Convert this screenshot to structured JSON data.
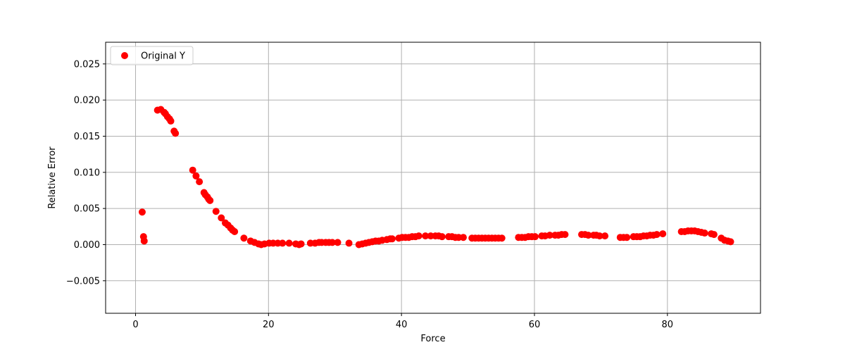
{
  "chart_data": {
    "type": "scatter",
    "title": "",
    "xlabel": "Force",
    "ylabel": "Relative Error",
    "xlim": [
      -4.5,
      94
    ],
    "ylim": [
      -0.0095,
      0.028
    ],
    "xticks": [
      0,
      20,
      40,
      60,
      80
    ],
    "yticks": [
      -0.005,
      0.0,
      0.005,
      0.01,
      0.015,
      0.02,
      0.025
    ],
    "ytick_labels": [
      "−0.005",
      "0.000",
      "0.005",
      "0.010",
      "0.015",
      "0.020",
      "0.025"
    ],
    "grid": true,
    "legend": {
      "position": "top-left"
    },
    "series": [
      {
        "name": "Original Y",
        "color": "#ff0000",
        "marker": "circle",
        "points": [
          [
            1.0,
            0.0045
          ],
          [
            1.2,
            0.0011
          ],
          [
            1.3,
            0.0005
          ],
          [
            3.3,
            0.0186
          ],
          [
            3.8,
            0.0187
          ],
          [
            4.3,
            0.0183
          ],
          [
            4.5,
            0.0181
          ],
          [
            4.8,
            0.0177
          ],
          [
            5.1,
            0.0174
          ],
          [
            5.3,
            0.0171
          ],
          [
            5.8,
            0.0157
          ],
          [
            6.0,
            0.0154
          ],
          [
            8.6,
            0.0103
          ],
          [
            9.1,
            0.0095
          ],
          [
            9.6,
            0.0087
          ],
          [
            10.3,
            0.0072
          ],
          [
            10.5,
            0.0069
          ],
          [
            10.8,
            0.0066
          ],
          [
            11.0,
            0.0063
          ],
          [
            11.2,
            0.0061
          ],
          [
            12.1,
            0.0046
          ],
          [
            12.9,
            0.0037
          ],
          [
            13.5,
            0.003
          ],
          [
            13.9,
            0.0027
          ],
          [
            14.3,
            0.0023
          ],
          [
            14.6,
            0.002
          ],
          [
            14.9,
            0.0018
          ],
          [
            16.3,
            0.0009
          ],
          [
            17.3,
            0.0005
          ],
          [
            17.9,
            0.0003
          ],
          [
            18.5,
            0.0001
          ],
          [
            18.9,
            0.0
          ],
          [
            19.4,
            0.0001
          ],
          [
            20.1,
            0.0002
          ],
          [
            20.7,
            0.0002
          ],
          [
            21.4,
            0.0002
          ],
          [
            22.1,
            0.0002
          ],
          [
            23.1,
            0.0002
          ],
          [
            24.1,
            0.0001
          ],
          [
            24.6,
            0.0
          ],
          [
            24.9,
            0.0001
          ],
          [
            26.3,
            0.0002
          ],
          [
            27.0,
            0.0002
          ],
          [
            27.6,
            0.0003
          ],
          [
            28.0,
            0.0003
          ],
          [
            28.6,
            0.0003
          ],
          [
            29.1,
            0.0003
          ],
          [
            29.6,
            0.0003
          ],
          [
            30.4,
            0.0003
          ],
          [
            32.1,
            0.0002
          ],
          [
            33.6,
            0.0
          ],
          [
            34.1,
            0.0001
          ],
          [
            34.6,
            0.0002
          ],
          [
            35.1,
            0.0003
          ],
          [
            35.6,
            0.0004
          ],
          [
            36.1,
            0.0005
          ],
          [
            36.6,
            0.0005
          ],
          [
            37.1,
            0.0006
          ],
          [
            37.8,
            0.0007
          ],
          [
            38.3,
            0.0008
          ],
          [
            38.6,
            0.0008
          ],
          [
            39.6,
            0.0009
          ],
          [
            40.1,
            0.001
          ],
          [
            40.6,
            0.001
          ],
          [
            41.1,
            0.001
          ],
          [
            41.6,
            0.0011
          ],
          [
            42.1,
            0.0011
          ],
          [
            42.6,
            0.0012
          ],
          [
            43.6,
            0.0012
          ],
          [
            44.4,
            0.0012
          ],
          [
            45.1,
            0.0012
          ],
          [
            45.6,
            0.0012
          ],
          [
            46.1,
            0.0011
          ],
          [
            47.1,
            0.0011
          ],
          [
            47.6,
            0.0011
          ],
          [
            48.1,
            0.001
          ],
          [
            48.6,
            0.001
          ],
          [
            49.3,
            0.001
          ],
          [
            50.6,
            0.0009
          ],
          [
            51.1,
            0.0009
          ],
          [
            51.6,
            0.0009
          ],
          [
            52.1,
            0.0009
          ],
          [
            52.6,
            0.0009
          ],
          [
            53.1,
            0.0009
          ],
          [
            53.6,
            0.0009
          ],
          [
            54.1,
            0.0009
          ],
          [
            54.6,
            0.0009
          ],
          [
            55.1,
            0.0009
          ],
          [
            57.6,
            0.001
          ],
          [
            58.1,
            0.001
          ],
          [
            58.6,
            0.001
          ],
          [
            59.1,
            0.0011
          ],
          [
            59.6,
            0.0011
          ],
          [
            60.1,
            0.0011
          ],
          [
            61.1,
            0.0012
          ],
          [
            61.6,
            0.0012
          ],
          [
            62.3,
            0.0013
          ],
          [
            63.1,
            0.0013
          ],
          [
            63.6,
            0.0013
          ],
          [
            64.1,
            0.0014
          ],
          [
            64.6,
            0.0014
          ],
          [
            67.1,
            0.0014
          ],
          [
            67.6,
            0.0014
          ],
          [
            68.1,
            0.0013
          ],
          [
            68.9,
            0.0013
          ],
          [
            69.3,
            0.0013
          ],
          [
            69.8,
            0.0012
          ],
          [
            70.6,
            0.0012
          ],
          [
            72.9,
            0.001
          ],
          [
            73.4,
            0.001
          ],
          [
            73.9,
            0.001
          ],
          [
            74.9,
            0.0011
          ],
          [
            75.4,
            0.0011
          ],
          [
            75.9,
            0.0011
          ],
          [
            76.4,
            0.0012
          ],
          [
            76.9,
            0.0012
          ],
          [
            77.4,
            0.0013
          ],
          [
            77.9,
            0.0013
          ],
          [
            78.4,
            0.0014
          ],
          [
            79.3,
            0.0015
          ],
          [
            82.1,
            0.0018
          ],
          [
            82.6,
            0.0018
          ],
          [
            83.1,
            0.0019
          ],
          [
            83.6,
            0.0019
          ],
          [
            84.1,
            0.0019
          ],
          [
            84.6,
            0.0018
          ],
          [
            85.1,
            0.0017
          ],
          [
            85.6,
            0.0016
          ],
          [
            86.6,
            0.0015
          ],
          [
            87.0,
            0.0014
          ],
          [
            88.1,
            0.0009
          ],
          [
            88.6,
            0.0006
          ],
          [
            89.1,
            0.0005
          ],
          [
            89.5,
            0.0004
          ]
        ]
      }
    ]
  }
}
